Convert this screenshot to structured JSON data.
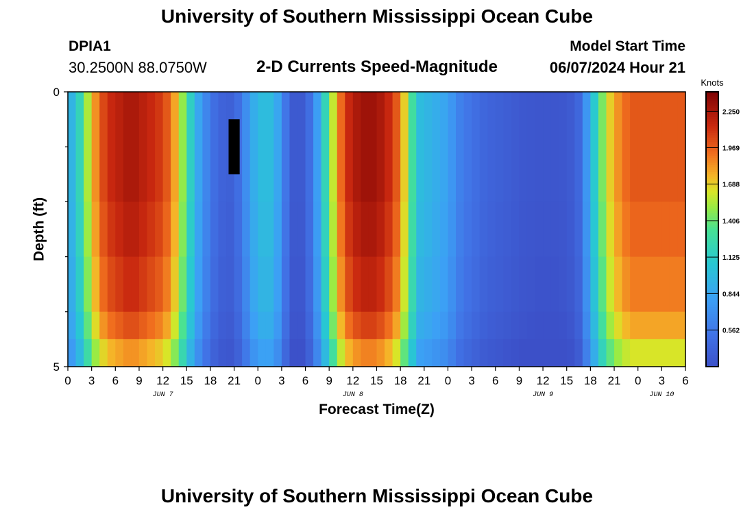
{
  "header": {
    "title": "University of Southern Mississippi Ocean Cube",
    "station_id": "DPIA1",
    "coords": "30.2500N  88.0750W",
    "subtitle": "2-D Currents Speed-Magnitude",
    "model_label": "Model Start Time",
    "model_time": "06/07/2024 Hour 21"
  },
  "footer": {
    "title": "University of Southern Mississippi Ocean Cube"
  },
  "chart_data": {
    "type": "heatmap",
    "title": "2-D Currents Speed-Magnitude",
    "xlabel": "Forecast Time(Z)",
    "ylabel": "Depth (ft)",
    "x_tick_labels": [
      "0",
      "3",
      "6",
      "9",
      "12",
      "15",
      "18",
      "21",
      "0",
      "3",
      "6",
      "9",
      "12",
      "15",
      "18",
      "21",
      "0",
      "3",
      "6",
      "9",
      "12",
      "15",
      "18",
      "21",
      "0",
      "3",
      "6"
    ],
    "x_day_labels": [
      "JUN 7",
      "JUN 8",
      "JUN 9",
      "JUN 10"
    ],
    "y_tick_labels": [
      "0",
      "5"
    ],
    "ylim": [
      0,
      5
    ],
    "x_range_hours": [
      0,
      78
    ],
    "colorbar": {
      "unit": "Knots",
      "tick_labels": [
        "2.250",
        "1.969",
        "1.688",
        "1.406",
        "1.125",
        "0.844",
        "0.562"
      ],
      "tick_values": [
        2.25,
        1.969,
        1.688,
        1.406,
        1.125,
        0.844,
        0.562
      ],
      "range": [
        0.28,
        2.4
      ]
    },
    "depth_rows_ft": [
      0.25,
      1.25,
      2.25,
      3.25,
      4.25,
      4.75
    ],
    "row_scale": [
      1.0,
      1.0,
      0.98,
      0.95,
      0.9,
      0.82
    ],
    "hours": [
      0,
      1,
      2,
      3,
      4,
      5,
      6,
      7,
      8,
      9,
      10,
      11,
      12,
      13,
      14,
      15,
      16,
      17,
      18,
      19,
      20,
      21,
      22,
      23,
      24,
      25,
      26,
      27,
      28,
      29,
      30,
      31,
      32,
      33,
      34,
      35,
      36,
      37,
      38,
      39,
      40,
      41,
      42,
      43,
      44,
      45,
      46,
      47,
      48,
      49,
      50,
      51,
      52,
      53,
      54,
      55,
      56,
      57,
      58,
      59,
      60,
      61,
      62,
      63,
      64,
      65,
      66,
      67,
      68,
      69,
      70,
      71,
      72,
      73,
      74,
      75,
      76,
      77,
      78
    ],
    "surface_speed_knots": [
      0.95,
      1.2,
      1.55,
      1.85,
      2.05,
      2.15,
      2.2,
      2.25,
      2.25,
      2.2,
      2.15,
      2.1,
      2.0,
      1.8,
      1.5,
      1.15,
      0.85,
      0.65,
      0.5,
      0.42,
      0.4,
      0.5,
      0.7,
      0.9,
      1.0,
      1.0,
      0.85,
      0.55,
      0.35,
      0.35,
      0.5,
      0.8,
      1.2,
      1.6,
      1.95,
      2.15,
      2.25,
      2.3,
      2.3,
      2.25,
      2.15,
      2.0,
      1.7,
      1.3,
      1.0,
      0.95,
      0.9,
      0.85,
      0.75,
      0.62,
      0.55,
      0.5,
      0.45,
      0.42,
      0.4,
      0.38,
      0.36,
      0.34,
      0.33,
      0.32,
      0.32,
      0.32,
      0.33,
      0.36,
      0.45,
      0.75,
      1.1,
      1.45,
      1.7,
      1.85,
      1.95,
      2.0,
      2.0,
      2.0,
      2.0,
      2.0,
      2.0,
      2.0,
      2.0
    ],
    "missing_data_block": {
      "hours": [
        20.3,
        21.7
      ],
      "depth_ft": [
        0.5,
        1.5
      ]
    }
  }
}
